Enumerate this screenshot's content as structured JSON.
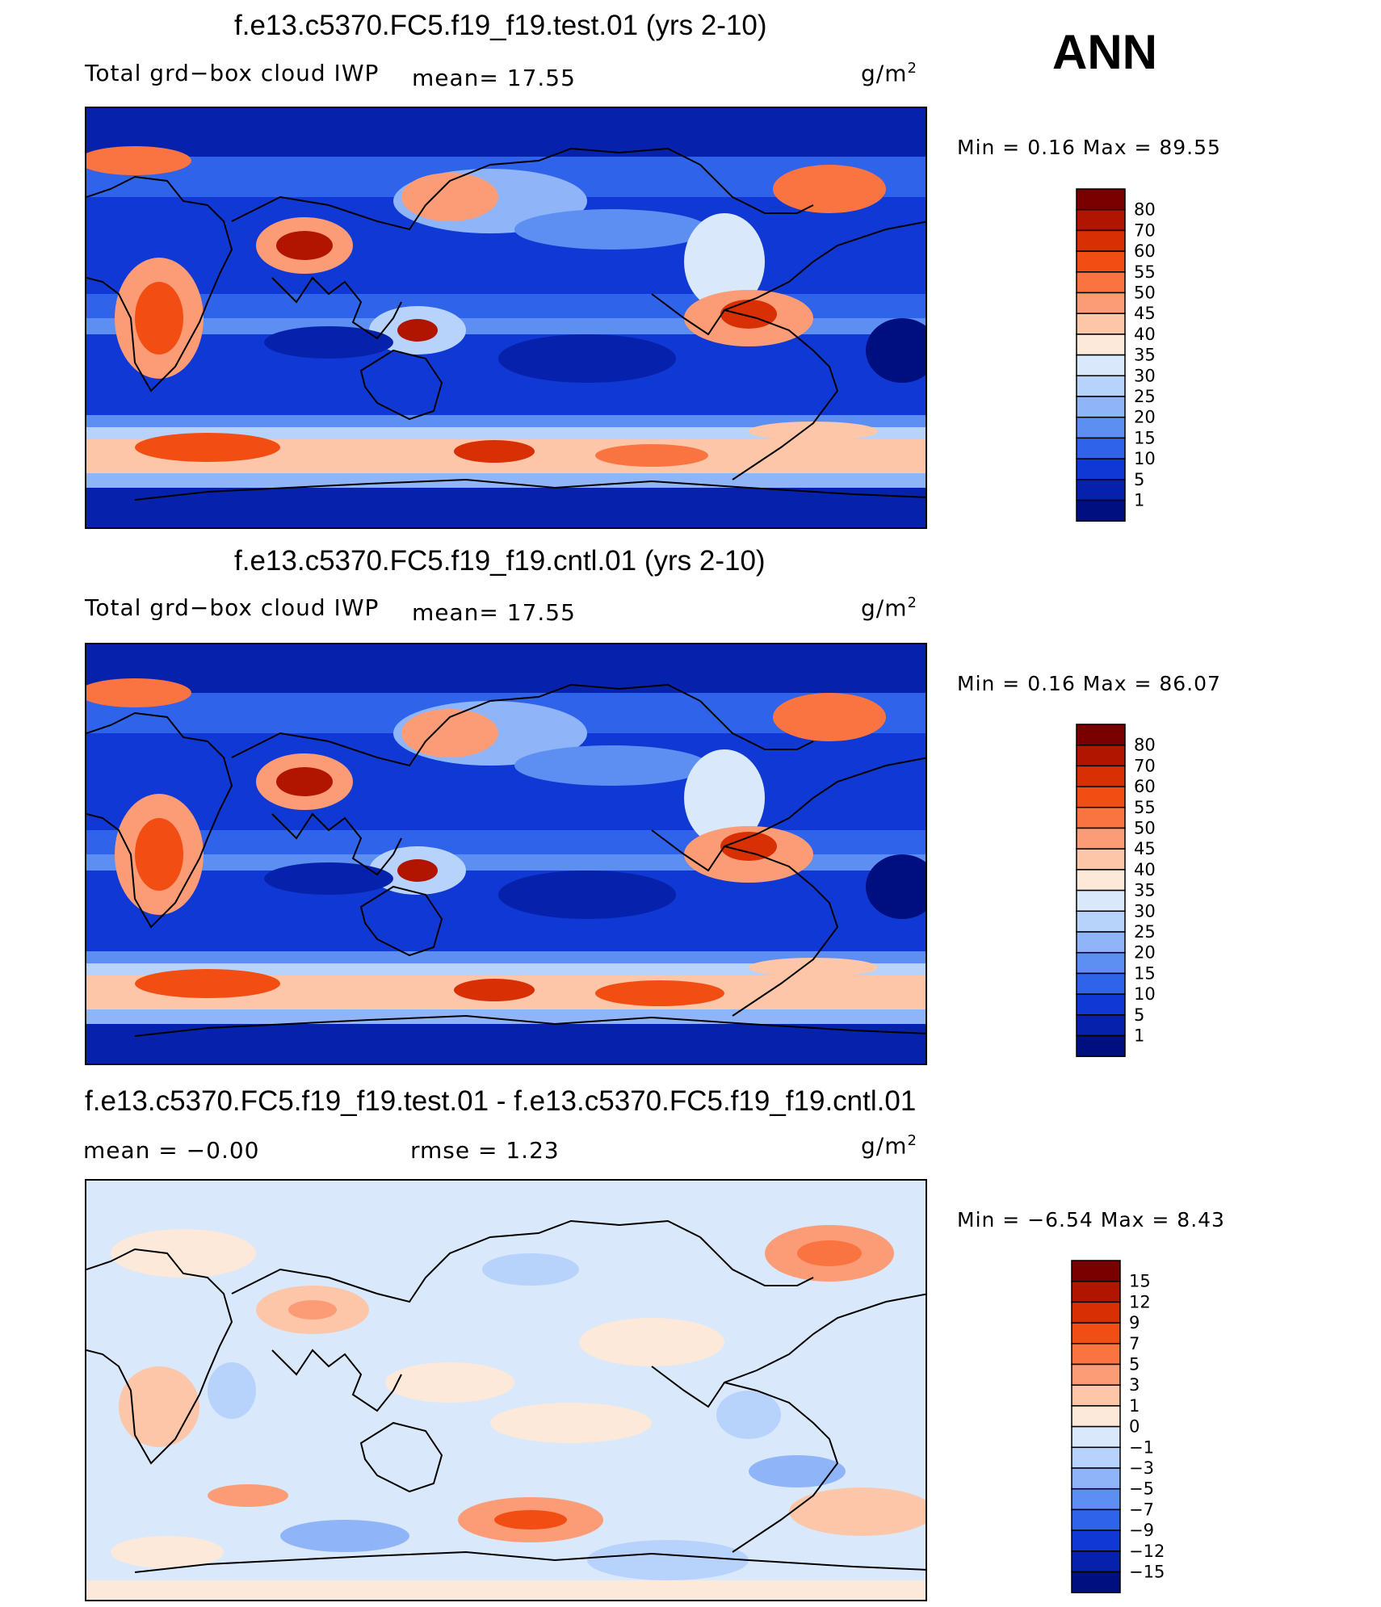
{
  "season": "ANN",
  "panels": [
    {
      "title": "f.e13.c5370.FC5.f19_f19.test.01 (yrs 2-10)",
      "variable": "Total grd−box cloud IWP",
      "stat1": "mean=   17.55",
      "units_base": "g/m",
      "units_exp": "2",
      "minmax": "Min =    0.16  Max =   89.55",
      "levels": [
        "80",
        "70",
        "60",
        "55",
        "50",
        "45",
        "40",
        "35",
        "30",
        "25",
        "20",
        "15",
        "10",
        "5",
        "1"
      ],
      "colors": [
        "#7a0000",
        "#b11500",
        "#d92f05",
        "#f24e13",
        "#fa7441",
        "#fc9c76",
        "#fdc6a8",
        "#fde9da",
        "#d9e8fb",
        "#b8d3fb",
        "#8fb5f8",
        "#5d8ef2",
        "#2e63ea",
        "#1038d4",
        "#0622ac",
        "#000f80"
      ]
    },
    {
      "title": "f.e13.c5370.FC5.f19_f19.cntl.01 (yrs 2-10)",
      "variable": "Total grd−box cloud IWP",
      "stat1": "mean=   17.55",
      "units_base": "g/m",
      "units_exp": "2",
      "minmax": "Min =    0.16  Max =   86.07",
      "levels": [
        "80",
        "70",
        "60",
        "55",
        "50",
        "45",
        "40",
        "35",
        "30",
        "25",
        "20",
        "15",
        "10",
        "5",
        "1"
      ],
      "colors": [
        "#7a0000",
        "#b11500",
        "#d92f05",
        "#f24e13",
        "#fa7441",
        "#fc9c76",
        "#fdc6a8",
        "#fde9da",
        "#d9e8fb",
        "#b8d3fb",
        "#8fb5f8",
        "#5d8ef2",
        "#2e63ea",
        "#1038d4",
        "#0622ac",
        "#000f80"
      ]
    },
    {
      "title": "f.e13.c5370.FC5.f19_f19.test.01 - f.e13.c5370.FC5.f19_f19.cntl.01",
      "stat1": "mean =   −0.00",
      "stat2": "rmse =    1.23",
      "units_base": "g/m",
      "units_exp": "2",
      "minmax": "Min =   −6.54  Max =    8.43",
      "levels": [
        "15",
        "12",
        "9",
        "7",
        "5",
        "3",
        "1",
        "0",
        "−1",
        "−3",
        "−5",
        "−7",
        "−9",
        "−12",
        "−15"
      ],
      "colors": [
        "#7a0000",
        "#b11500",
        "#d92f05",
        "#f24e13",
        "#fa7441",
        "#fc9c76",
        "#fdc6a8",
        "#fde9da",
        "#d9e8fb",
        "#b8d3fb",
        "#8fb5f8",
        "#5d8ef2",
        "#2e63ea",
        "#1038d4",
        "#0622ac",
        "#000f80"
      ]
    }
  ]
}
